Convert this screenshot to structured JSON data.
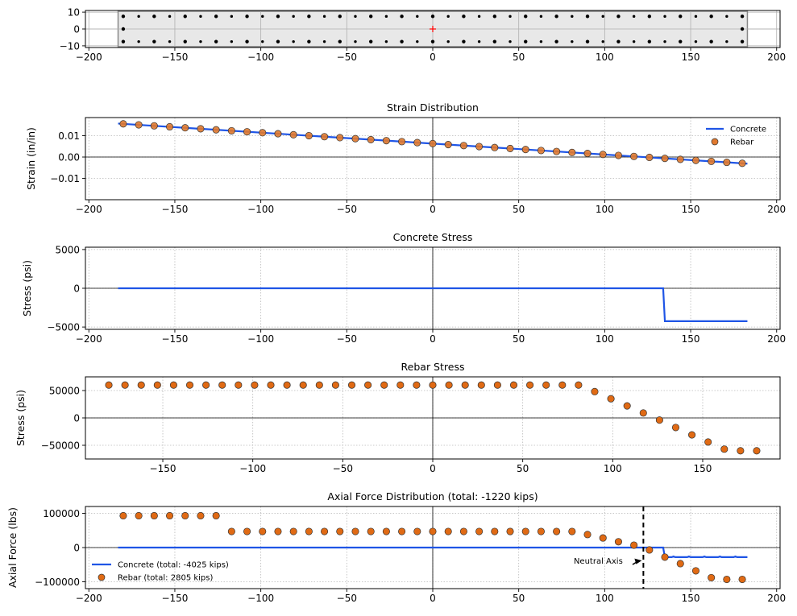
{
  "chart_data": [
    {
      "type": "scatter",
      "panel": "section",
      "title": "",
      "xlabel": "",
      "ylabel": "",
      "xlim": [
        -202,
        202
      ],
      "ylim": [
        -11,
        11
      ],
      "xticks": [
        -200,
        -150,
        -100,
        -50,
        0,
        50,
        100,
        150,
        200
      ],
      "yticks": [
        -10,
        0,
        10
      ],
      "xtick_labels": [
        "−200",
        "−150",
        "−100",
        "−50",
        "0",
        "50",
        "100",
        "150",
        "200"
      ],
      "ytick_labels": [
        "−10",
        "0",
        "10"
      ],
      "grid": true,
      "section_rect": {
        "x": [
          -183,
          183
        ],
        "y": [
          -10.5,
          10.5
        ],
        "fill": "#e8e8e8",
        "edge": "#888888"
      },
      "centroid": {
        "x": 0,
        "y": 0,
        "color": "#ff0000"
      },
      "bars_top": {
        "y": 7.5,
        "x": [
          -180,
          -171,
          -162,
          -153,
          -144,
          -135,
          -126,
          -117,
          -108,
          -99,
          -90,
          -81,
          -72,
          -63,
          -54,
          -45,
          -36,
          -27,
          -18,
          -9,
          0,
          9,
          18,
          27,
          36,
          45,
          54,
          63,
          72,
          81,
          90,
          99,
          108,
          117,
          126,
          135,
          144,
          153,
          162,
          171,
          180
        ]
      },
      "bars_bottom": {
        "y": -7.5,
        "x": [
          -180,
          -171,
          -162,
          -153,
          -144,
          -135,
          -126,
          -117,
          -108,
          -99,
          -90,
          -81,
          -72,
          -63,
          -54,
          -45,
          -36,
          -27,
          -18,
          -9,
          0,
          9,
          18,
          27,
          36,
          45,
          54,
          63,
          72,
          81,
          90,
          99,
          108,
          117,
          126,
          135,
          144,
          153,
          162,
          171,
          180
        ]
      },
      "bars_mid": {
        "y": 0,
        "x": [
          -180,
          180
        ]
      }
    },
    {
      "type": "line",
      "panel": "strain",
      "title": "Strain Distribution",
      "xlabel": "",
      "ylabel": "Strain (in/in)",
      "xlim": [
        -202,
        202
      ],
      "ylim": [
        -0.02,
        0.0185
      ],
      "xticks": [
        -200,
        -150,
        -100,
        -50,
        0,
        50,
        100,
        150,
        200
      ],
      "yticks": [
        -0.01,
        0,
        0.01
      ],
      "xtick_labels": [
        "−200",
        "−150",
        "−100",
        "−50",
        "0",
        "50",
        "100",
        "150",
        "200"
      ],
      "ytick_labels": [
        "−0.01",
        "0.00",
        "0.01"
      ],
      "grid": true,
      "legend": "top-right",
      "series": [
        {
          "name": "Concrete",
          "kind": "line",
          "color": "#1f55e6",
          "x": [
            -183,
            183
          ],
          "y": [
            0.0157,
            -0.0031
          ]
        },
        {
          "name": "Rebar",
          "kind": "scatter",
          "color": "#e0792e",
          "slope": -5.14e-05,
          "intercept": 0.0063,
          "x": [
            -180,
            -171,
            -162,
            -153,
            -144,
            -135,
            -126,
            -117,
            -108,
            -99,
            -90,
            -81,
            -72,
            -63,
            -54,
            -45,
            -36,
            -27,
            -18,
            -9,
            0,
            9,
            18,
            27,
            36,
            45,
            54,
            63,
            72,
            81,
            90,
            99,
            108,
            117,
            126,
            135,
            144,
            153,
            162,
            171,
            180
          ]
        }
      ]
    },
    {
      "type": "line",
      "panel": "concrete_stress",
      "title": "Concrete Stress",
      "xlabel": "",
      "ylabel": "Stress (psi)",
      "xlim": [
        -202,
        202
      ],
      "ylim": [
        -5300,
        5300
      ],
      "xticks": [
        -200,
        -150,
        -100,
        -50,
        0,
        50,
        100,
        150,
        200
      ],
      "yticks": [
        -5000,
        0,
        5000
      ],
      "xtick_labels": [
        "−200",
        "−150",
        "−100",
        "−50",
        "0",
        "50",
        "100",
        "150",
        "200"
      ],
      "ytick_labels": [
        "−5000",
        "0",
        "5000"
      ],
      "grid": true,
      "series": [
        {
          "name": "",
          "kind": "line",
          "color": "#1f55e6",
          "x": [
            -183,
            134,
            135,
            183
          ],
          "y": [
            0,
            0,
            -4250,
            -4250
          ]
        }
      ]
    },
    {
      "type": "scatter",
      "panel": "rebar_stress",
      "title": "Rebar Stress",
      "xlabel": "",
      "ylabel": "Stress (psi)",
      "xlim": [
        -193,
        193
      ],
      "ylim": [
        -75000,
        75000
      ],
      "xticks": [
        -150,
        -100,
        -50,
        0,
        50,
        100,
        150
      ],
      "yticks": [
        -50000,
        0,
        50000
      ],
      "xtick_labels": [
        "−150",
        "−100",
        "−50",
        "0",
        "50",
        "100",
        "150"
      ],
      "ytick_labels": [
        "−50000",
        "0",
        "50000"
      ],
      "grid": true,
      "series": [
        {
          "name": "",
          "kind": "scatter",
          "color": "#e06a14",
          "x": [
            -180,
            -171,
            -162,
            -153,
            -144,
            -135,
            -126,
            -117,
            -108,
            -99,
            -90,
            -81,
            -72,
            -63,
            -54,
            -45,
            -36,
            -27,
            -18,
            -9,
            0,
            9,
            18,
            27,
            36,
            45,
            54,
            63,
            72,
            81,
            90,
            99,
            108,
            117,
            126,
            135,
            144,
            153,
            162,
            171,
            180
          ],
          "y": [
            60000,
            60000,
            60000,
            60000,
            60000,
            60000,
            60000,
            60000,
            60000,
            60000,
            60000,
            60000,
            60000,
            60000,
            60000,
            60000,
            60000,
            60000,
            60000,
            60000,
            60000,
            60000,
            60000,
            60000,
            60000,
            60000,
            60000,
            60000,
            60000,
            60000,
            48000,
            35000,
            22000,
            9000,
            -4000,
            -17500,
            -31000,
            -44000,
            -57000,
            -60000,
            -60000
          ]
        }
      ]
    },
    {
      "type": "line",
      "panel": "axial_force",
      "title": "Axial Force Distribution (total: -1220 kips)",
      "xlabel": "",
      "ylabel": "Axial Force (lbs)",
      "xlim": [
        -202,
        202
      ],
      "ylim": [
        -120000,
        120000
      ],
      "xticks": [
        -200,
        -150,
        -100,
        -50,
        0,
        50,
        100,
        150,
        200
      ],
      "yticks": [
        -100000,
        0,
        100000
      ],
      "xtick_labels": [
        "−200",
        "−150",
        "−100",
        "−50",
        "0",
        "50",
        "100",
        "150",
        "200"
      ],
      "ytick_labels": [
        "−100000",
        "0",
        "100000"
      ],
      "grid": true,
      "legend": "bottom-left",
      "neutral_axis": {
        "x": 122.5,
        "label": "Neutral Axis",
        "label_x": 82,
        "label_y": -38000
      },
      "series": [
        {
          "name": "Concrete (total: -4025 kips)",
          "kind": "line",
          "color": "#1f55e6",
          "x": [
            -183,
            134,
            135,
            139,
            140,
            141,
            148,
            149,
            150,
            157,
            158,
            159,
            166,
            167,
            168,
            175,
            176,
            177,
            183
          ],
          "y": [
            0,
            0,
            -28000,
            -28000,
            -26000,
            -28000,
            -28000,
            -26000,
            -28000,
            -28000,
            -26000,
            -28000,
            -28000,
            -26000,
            -28000,
            -28000,
            -26000,
            -28000,
            -28000
          ]
        },
        {
          "name": "Rebar (total: 2805 kips)",
          "kind": "scatter",
          "color": "#e06a14",
          "x": [
            -180,
            -171,
            -162,
            -153,
            -144,
            -135,
            -126,
            -117,
            -108,
            -99,
            -90,
            -81,
            -72,
            -63,
            -54,
            -45,
            -36,
            -27,
            -18,
            -9,
            0,
            9,
            18,
            27,
            36,
            45,
            54,
            63,
            72,
            81,
            90,
            99,
            108,
            117,
            126,
            135,
            144,
            153,
            162,
            171,
            180
          ],
          "y": [
            93000,
            93000,
            93000,
            93000,
            93000,
            93000,
            93000,
            47000,
            47000,
            47000,
            47000,
            47000,
            47000,
            47000,
            47000,
            47000,
            47000,
            47000,
            47000,
            47000,
            47000,
            47000,
            47000,
            47000,
            47000,
            47000,
            47000,
            47000,
            47000,
            47000,
            38000,
            28000,
            17000,
            7000,
            -7000,
            -28000,
            -47000,
            -68000,
            -88000,
            -93000,
            -93000
          ]
        }
      ]
    }
  ]
}
